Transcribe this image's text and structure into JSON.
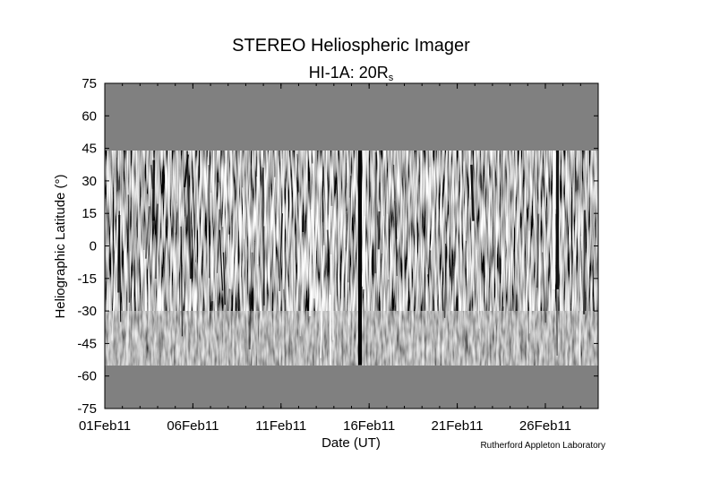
{
  "chart_data": {
    "type": "heatmap",
    "title": "STEREO Heliospheric Imager",
    "subtitle": {
      "main": "HI-1A: 20R",
      "subscript": "s"
    },
    "xlabel": "Date (UT)",
    "ylabel": "Heliographic Latitude (°)",
    "ylim": [
      -75,
      75
    ],
    "y_ticks": [
      75,
      60,
      45,
      30,
      15,
      0,
      -15,
      -30,
      -45,
      -60,
      -75
    ],
    "y_tick_labels": [
      "75",
      "60",
      "45",
      "30",
      "15",
      "0",
      "-15",
      "-30",
      "-45",
      "-60",
      "-75"
    ],
    "x_range_days": [
      "2011-02-01",
      "2011-02-28"
    ],
    "x_tick_labels": [
      "01Feb11",
      "06Feb11",
      "11Feb11",
      "16Feb11",
      "21Feb11",
      "26Feb11"
    ],
    "x_tick_dates": [
      "2011-02-01",
      "2011-02-06",
      "2011-02-11",
      "2011-02-16",
      "2011-02-21",
      "2011-02-26"
    ],
    "data_latitude_range": [
      -55,
      44
    ],
    "colormap": "grayscale",
    "no_data_color": "#808080",
    "credit": "Rutherford Appleton Laboratory"
  }
}
